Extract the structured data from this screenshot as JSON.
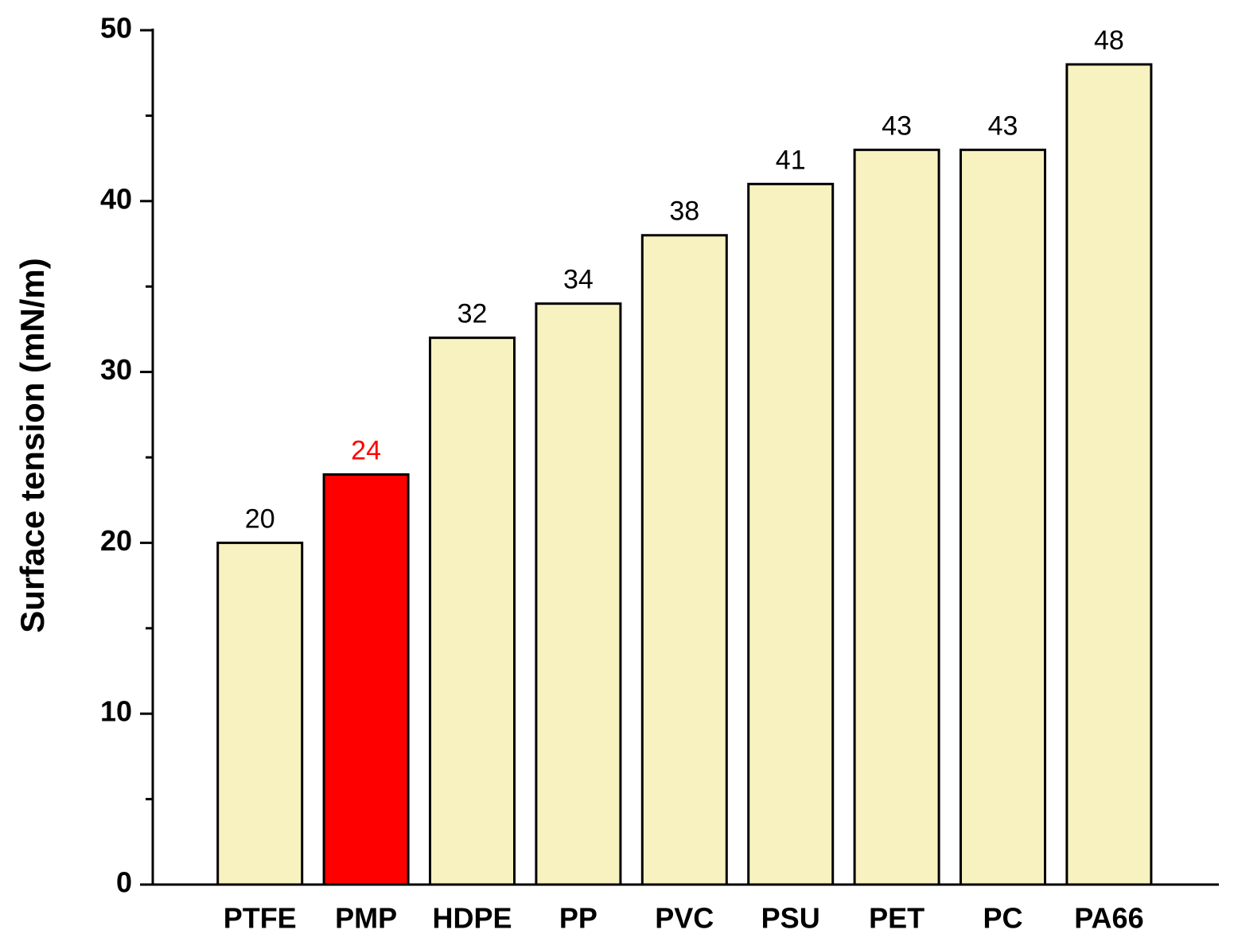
{
  "chart_data": {
    "type": "bar",
    "ylabel": "Surface tension (mN/m)",
    "categories": [
      "PTFE",
      "PMP",
      "HDPE",
      "PP",
      "PVC",
      "PSU",
      "PET",
      "PC",
      "PA66"
    ],
    "values": [
      20,
      24,
      32,
      34,
      38,
      41,
      43,
      43,
      48
    ],
    "colors": [
      "#f8f2c0",
      "#ff0000",
      "#f8f2c0",
      "#f8f2c0",
      "#f8f2c0",
      "#f8f2c0",
      "#f8f2c0",
      "#f8f2c0",
      "#f8f2c0"
    ],
    "label_colors": [
      "#000000",
      "#ff0000",
      "#000000",
      "#000000",
      "#000000",
      "#000000",
      "#000000",
      "#000000",
      "#000000"
    ],
    "ylim": [
      0,
      50
    ],
    "yticks": [
      0,
      10,
      20,
      30,
      40,
      50
    ],
    "yminorticks": [
      5,
      15,
      25,
      35,
      45
    ],
    "grid": false
  }
}
